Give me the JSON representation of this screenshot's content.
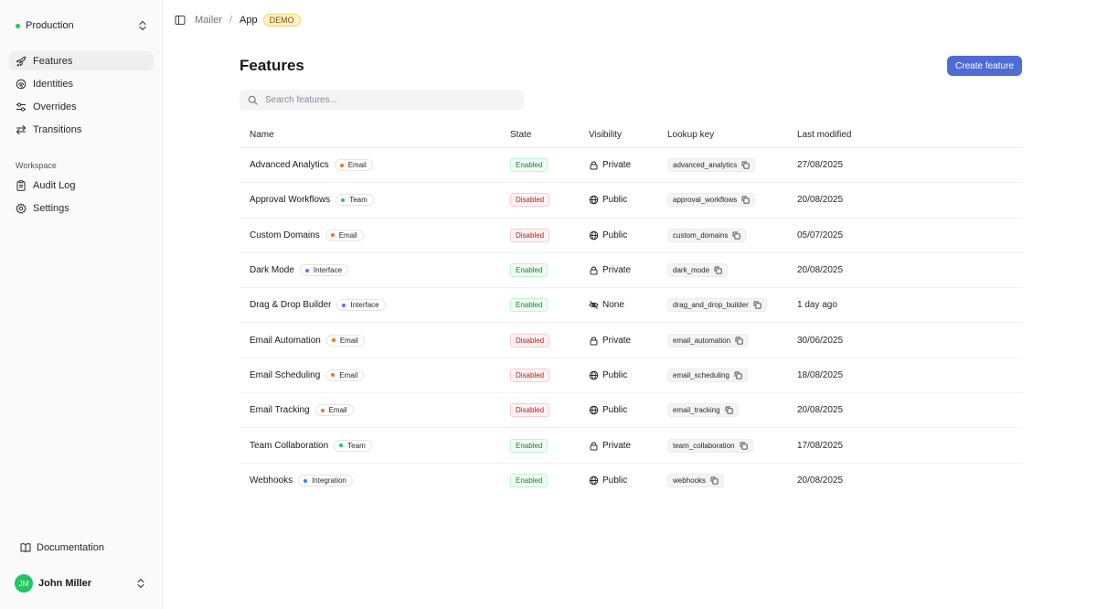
{
  "sidebar": {
    "environment": "Production",
    "nav": [
      {
        "label": "Features",
        "icon": "rocket-icon",
        "active": true
      },
      {
        "label": "Identities",
        "icon": "fingerprint-icon"
      },
      {
        "label": "Overrides",
        "icon": "sliders-icon"
      },
      {
        "label": "Transitions",
        "icon": "arrows-swap-icon"
      }
    ],
    "workspace_label": "Workspace",
    "workspace_nav": [
      {
        "label": "Audit Log",
        "icon": "clipboard-icon"
      },
      {
        "label": "Settings",
        "icon": "gear-icon"
      }
    ],
    "documentation": "Documentation",
    "user": {
      "initials": "JM",
      "name": "John Miller"
    }
  },
  "breadcrumb": {
    "parent": "Mailer",
    "separator": "/",
    "current": "App",
    "badge": "DEMO"
  },
  "page": {
    "title": "Features",
    "create_label": "Create feature",
    "search_placeholder": "Search features..."
  },
  "table": {
    "columns": {
      "name": "Name",
      "state": "State",
      "visibility": "Visibility",
      "lookup": "Lookup key",
      "modified": "Last modified"
    },
    "rows": [
      {
        "name": "Advanced Analytics",
        "tag": "Email",
        "tag_color": "#f97316",
        "state": "Enabled",
        "visibility": "Private",
        "key": "advanced_analytics",
        "modified": "27/08/2025"
      },
      {
        "name": "Approval Workflows",
        "tag": "Team",
        "tag_color": "#22c55e",
        "state": "Disabled",
        "visibility": "Public",
        "key": "approval_workflows",
        "modified": "20/08/2025"
      },
      {
        "name": "Custom Domains",
        "tag": "Email",
        "tag_color": "#f97316",
        "state": "Disabled",
        "visibility": "Public",
        "key": "custom_domains",
        "modified": "05/07/2025"
      },
      {
        "name": "Dark Mode",
        "tag": "Interface",
        "tag_color": "#8b5cf6",
        "state": "Enabled",
        "visibility": "Private",
        "key": "dark_mode",
        "modified": "20/08/2025"
      },
      {
        "name": "Drag & Drop Builder",
        "tag": "Interface",
        "tag_color": "#8b5cf6",
        "state": "Enabled",
        "visibility": "None",
        "key": "drag_and_drop_builder",
        "modified": "1 day ago"
      },
      {
        "name": "Email Automation",
        "tag": "Email",
        "tag_color": "#f97316",
        "state": "Disabled",
        "visibility": "Private",
        "key": "email_automation",
        "modified": "30/06/2025"
      },
      {
        "name": "Email Scheduling",
        "tag": "Email",
        "tag_color": "#f97316",
        "state": "Disabled",
        "visibility": "Public",
        "key": "email_scheduling",
        "modified": "18/08/2025"
      },
      {
        "name": "Email Tracking",
        "tag": "Email",
        "tag_color": "#f97316",
        "state": "Disabled",
        "visibility": "Public",
        "key": "email_tracking",
        "modified": "20/08/2025"
      },
      {
        "name": "Team Collaboration",
        "tag": "Team",
        "tag_color": "#22c55e",
        "state": "Enabled",
        "visibility": "Private",
        "key": "team_collaboration",
        "modified": "17/08/2025"
      },
      {
        "name": "Webhooks",
        "tag": "Integration",
        "tag_color": "#3b82f6",
        "state": "Enabled",
        "visibility": "Public",
        "key": "webhooks",
        "modified": "20/08/2025"
      }
    ]
  }
}
